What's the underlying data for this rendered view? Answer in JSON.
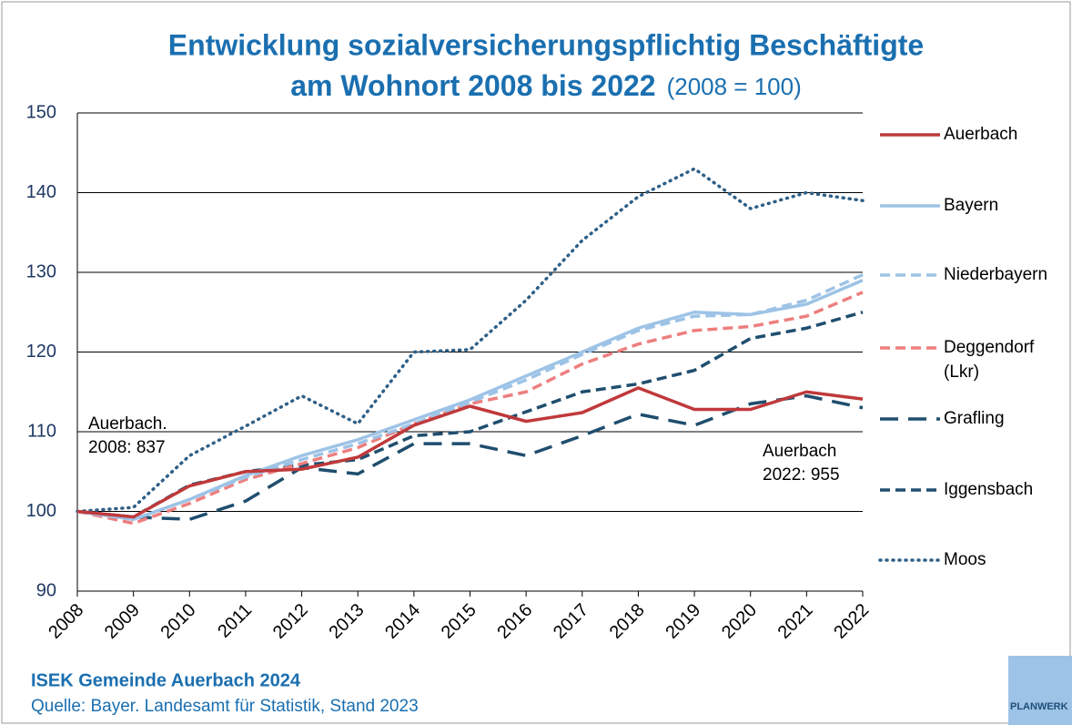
{
  "chart_data": {
    "type": "line",
    "title": [
      "Entwicklung sozialversicherungspflichtig Beschäftigte",
      "am Wohnort 2008 bis 2022"
    ],
    "subtitle": "(2008 = 100)",
    "x": [
      2008,
      2009,
      2010,
      2011,
      2012,
      2013,
      2014,
      2015,
      2016,
      2017,
      2018,
      2019,
      2020,
      2021,
      2022
    ],
    "xlim": [
      2008,
      2022
    ],
    "xticks": [
      2008,
      2009,
      2010,
      2011,
      2012,
      2013,
      2014,
      2015,
      2016,
      2017,
      2018,
      2019,
      2020,
      2021,
      2022
    ],
    "ylim": [
      90,
      150
    ],
    "yticks": [
      90,
      100,
      110,
      120,
      130,
      140,
      150
    ],
    "grid": true,
    "legend": "right",
    "series": [
      {
        "name": "Auerbach",
        "color": "#c0393b",
        "dash": "solid",
        "values": [
          100,
          99.3,
          103.2,
          105,
          105.3,
          106.8,
          110.8,
          113.2,
          111.3,
          112.4,
          115.5,
          112.8,
          112.8,
          115,
          114.1
        ]
      },
      {
        "name": "Bayern",
        "color": "#9dc3e6",
        "dash": "solid",
        "values": [
          100,
          99,
          101.5,
          104.5,
          107,
          109,
          111.5,
          114,
          117,
          120,
          123,
          125,
          124.7,
          126,
          129
        ]
      },
      {
        "name": "Niederbayern",
        "color": "#9dc3e6",
        "dash": "dashed",
        "values": [
          100,
          99,
          101.5,
          104.3,
          106.5,
          108.5,
          111,
          113.7,
          116.5,
          119.7,
          122.7,
          124.5,
          124.7,
          126.5,
          129.7
        ]
      },
      {
        "name": "Deggendorf (Lkr)",
        "color": "#ee7f7f",
        "dash": "dashed",
        "values": [
          100,
          98.5,
          101,
          104,
          106,
          108,
          111,
          113.5,
          115,
          118.5,
          121,
          122.7,
          123.2,
          124.5,
          127.5
        ]
      },
      {
        "name": "Grafling",
        "color": "#1f4e6e",
        "dash": "longdash",
        "values": [
          100,
          99.3,
          99,
          101.3,
          105.5,
          104.7,
          108.5,
          108.5,
          107,
          109.5,
          112.2,
          110.8,
          113.5,
          114.5,
          113
        ]
      },
      {
        "name": "Iggensbach",
        "color": "#1f4e6e",
        "dash": "dashed",
        "values": [
          100,
          99.3,
          103.3,
          105,
          105.8,
          106.5,
          109.5,
          110,
          112.5,
          115,
          116,
          117.7,
          121.7,
          123,
          125
        ]
      },
      {
        "name": "Moos",
        "color": "#2e5f87",
        "dash": "dotted",
        "values": [
          100,
          100.5,
          107,
          110.7,
          114.5,
          111,
          120,
          120.3,
          126.5,
          134,
          139.5,
          143,
          138,
          140,
          139
        ]
      }
    ],
    "annotations": [
      "Auerbach.",
      "2008: 837",
      "Auerbach",
      "2022: 955"
    ],
    "footer": [
      "ISEK Gemeinde Auerbach 2024",
      "Quelle: Bayer. Landesamt für Statistik, Stand 2023"
    ],
    "logo": "PLANWERK"
  }
}
